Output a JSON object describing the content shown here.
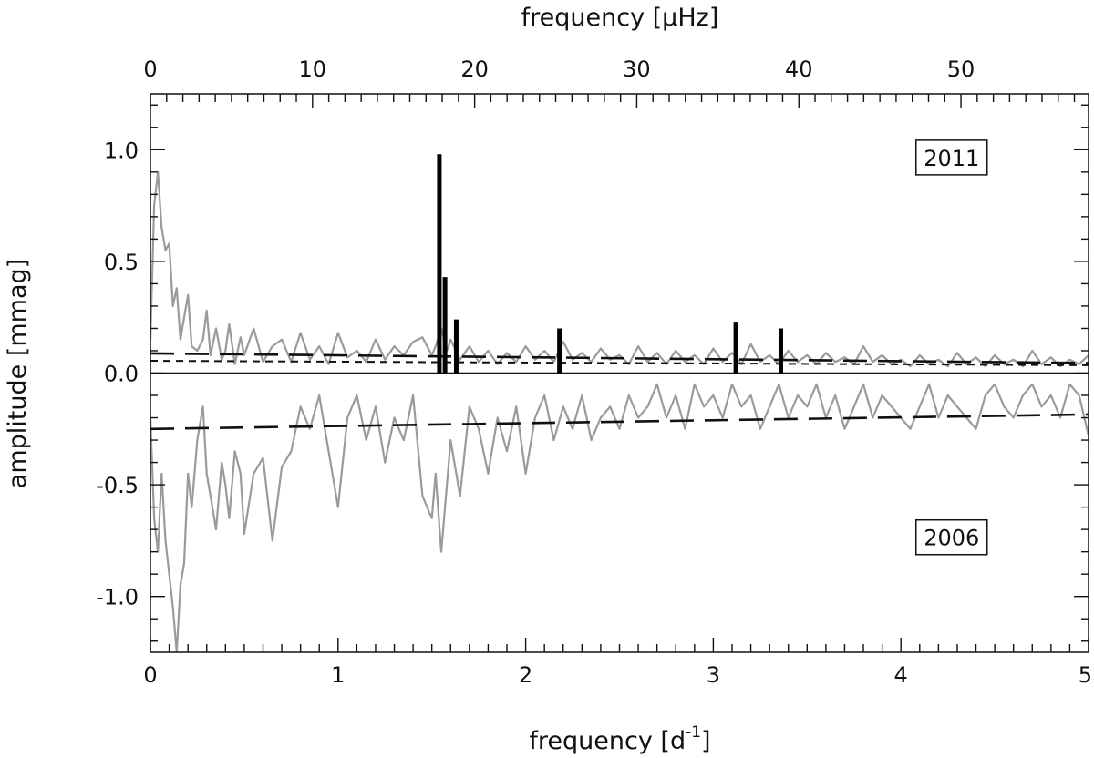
{
  "chart_data": {
    "type": "line",
    "title": "",
    "xlabel": "frequency [d",
    "xlabel_sup": "-1",
    "xlabel_end": "]",
    "x2label": "frequency [μHz]",
    "ylabel": "amplitude [mmag]",
    "xlim": [
      0,
      5
    ],
    "ylim": [
      -1.25,
      1.25
    ],
    "x2lim": [
      0,
      57.87
    ],
    "x_ticks": [
      0,
      1,
      2,
      3,
      4,
      5
    ],
    "x_tick_labels": [
      "0",
      "1",
      "2",
      "3",
      "4",
      "5"
    ],
    "x2_ticks": [
      0,
      10,
      20,
      30,
      40,
      50
    ],
    "x2_tick_labels": [
      "0",
      "10",
      "20",
      "30",
      "40",
      "50"
    ],
    "y_ticks": [
      -1.0,
      -0.5,
      0.0,
      0.5,
      1.0
    ],
    "y_tick_labels": [
      "-1.0",
      "-0.5",
      "0.0",
      "0.5",
      "1.0"
    ],
    "annotations": [
      {
        "text": "2011",
        "x": 4.27,
        "y": 0.965
      },
      {
        "text": "2006",
        "x": 4.27,
        "y": -0.735
      }
    ],
    "series": [
      {
        "style": "gray-solid",
        "x": [
          0.0,
          0.02,
          0.04,
          0.06,
          0.08,
          0.1,
          0.12,
          0.14,
          0.16,
          0.18,
          0.2,
          0.22,
          0.25,
          0.28,
          0.3,
          0.32,
          0.35,
          0.38,
          0.4,
          0.42,
          0.45,
          0.48,
          0.5,
          0.55,
          0.6,
          0.65,
          0.7,
          0.75,
          0.8,
          0.85,
          0.9,
          0.95,
          1.0,
          1.05,
          1.1,
          1.15,
          1.2,
          1.25,
          1.3,
          1.35,
          1.4,
          1.45,
          1.5,
          1.52,
          1.55,
          1.58,
          1.6,
          1.65,
          1.7,
          1.75,
          1.8,
          1.85,
          1.9,
          1.95,
          2.0,
          2.05,
          2.1,
          2.15,
          2.2,
          2.25,
          2.3,
          2.35,
          2.4,
          2.45,
          2.5,
          2.55,
          2.6,
          2.65,
          2.7,
          2.75,
          2.8,
          2.85,
          2.9,
          2.95,
          3.0,
          3.05,
          3.1,
          3.15,
          3.2,
          3.25,
          3.3,
          3.35,
          3.4,
          3.45,
          3.5,
          3.55,
          3.6,
          3.65,
          3.7,
          3.75,
          3.8,
          3.85,
          3.9,
          3.95,
          4.0,
          4.05,
          4.1,
          4.15,
          4.2,
          4.25,
          4.3,
          4.35,
          4.4,
          4.45,
          4.5,
          4.55,
          4.6,
          4.65,
          4.7,
          4.75,
          4.8,
          4.85,
          4.9,
          4.95,
          5.0
        ],
        "y": [
          0.15,
          0.75,
          0.9,
          0.65,
          0.55,
          0.58,
          0.3,
          0.38,
          0.15,
          0.25,
          0.35,
          0.12,
          0.1,
          0.15,
          0.28,
          0.08,
          0.2,
          0.06,
          0.1,
          0.22,
          0.04,
          0.16,
          0.08,
          0.2,
          0.05,
          0.12,
          0.15,
          0.05,
          0.18,
          0.06,
          0.12,
          0.04,
          0.18,
          0.07,
          0.1,
          0.05,
          0.15,
          0.06,
          0.12,
          0.08,
          0.14,
          0.16,
          0.08,
          0.12,
          0.2,
          0.1,
          0.15,
          0.06,
          0.12,
          0.05,
          0.1,
          0.04,
          0.09,
          0.05,
          0.12,
          0.06,
          0.1,
          0.05,
          0.14,
          0.06,
          0.09,
          0.05,
          0.11,
          0.06,
          0.08,
          0.04,
          0.12,
          0.05,
          0.09,
          0.04,
          0.1,
          0.05,
          0.08,
          0.04,
          0.11,
          0.05,
          0.09,
          0.04,
          0.13,
          0.05,
          0.08,
          0.04,
          0.1,
          0.05,
          0.08,
          0.04,
          0.09,
          0.05,
          0.07,
          0.04,
          0.12,
          0.05,
          0.08,
          0.04,
          0.06,
          0.03,
          0.08,
          0.04,
          0.06,
          0.03,
          0.09,
          0.04,
          0.07,
          0.03,
          0.08,
          0.04,
          0.06,
          0.03,
          0.1,
          0.04,
          0.07,
          0.03,
          0.06,
          0.04,
          0.08
        ]
      },
      {
        "style": "gray-solid",
        "x": [
          0.0,
          0.02,
          0.04,
          0.06,
          0.08,
          0.1,
          0.12,
          0.14,
          0.16,
          0.18,
          0.2,
          0.22,
          0.25,
          0.28,
          0.3,
          0.32,
          0.35,
          0.38,
          0.4,
          0.42,
          0.45,
          0.48,
          0.5,
          0.55,
          0.6,
          0.65,
          0.7,
          0.75,
          0.8,
          0.85,
          0.9,
          0.95,
          1.0,
          1.05,
          1.1,
          1.15,
          1.2,
          1.25,
          1.3,
          1.35,
          1.4,
          1.45,
          1.5,
          1.52,
          1.55,
          1.58,
          1.6,
          1.65,
          1.7,
          1.75,
          1.8,
          1.85,
          1.9,
          1.95,
          2.0,
          2.05,
          2.1,
          2.15,
          2.2,
          2.25,
          2.3,
          2.35,
          2.4,
          2.45,
          2.5,
          2.55,
          2.6,
          2.65,
          2.7,
          2.75,
          2.8,
          2.85,
          2.9,
          2.95,
          3.0,
          3.05,
          3.1,
          3.15,
          3.2,
          3.25,
          3.3,
          3.35,
          3.4,
          3.45,
          3.5,
          3.55,
          3.6,
          3.65,
          3.7,
          3.75,
          3.8,
          3.85,
          3.9,
          3.95,
          4.0,
          4.05,
          4.1,
          4.15,
          4.2,
          4.25,
          4.3,
          4.35,
          4.4,
          4.45,
          4.5,
          4.55,
          4.6,
          4.65,
          4.7,
          4.75,
          4.8,
          4.85,
          4.9,
          4.95,
          5.0
        ],
        "y": [
          -0.2,
          -0.65,
          -0.8,
          -0.45,
          -0.75,
          -0.9,
          -1.05,
          -1.25,
          -0.95,
          -0.85,
          -0.45,
          -0.6,
          -0.3,
          -0.15,
          -0.45,
          -0.55,
          -0.7,
          -0.4,
          -0.5,
          -0.65,
          -0.35,
          -0.45,
          -0.72,
          -0.45,
          -0.38,
          -0.75,
          -0.42,
          -0.35,
          -0.15,
          -0.25,
          -0.1,
          -0.35,
          -0.6,
          -0.2,
          -0.1,
          -0.3,
          -0.15,
          -0.4,
          -0.2,
          -0.3,
          -0.1,
          -0.55,
          -0.65,
          -0.45,
          -0.8,
          -0.5,
          -0.3,
          -0.55,
          -0.15,
          -0.25,
          -0.45,
          -0.2,
          -0.35,
          -0.15,
          -0.45,
          -0.2,
          -0.1,
          -0.3,
          -0.15,
          -0.25,
          -0.1,
          -0.3,
          -0.2,
          -0.15,
          -0.25,
          -0.1,
          -0.2,
          -0.15,
          -0.05,
          -0.2,
          -0.1,
          -0.25,
          -0.05,
          -0.15,
          -0.1,
          -0.2,
          -0.05,
          -0.15,
          -0.1,
          -0.25,
          -0.15,
          -0.05,
          -0.2,
          -0.1,
          -0.15,
          -0.05,
          -0.2,
          -0.1,
          -0.25,
          -0.15,
          -0.05,
          -0.2,
          -0.1,
          -0.15,
          -0.2,
          -0.25,
          -0.15,
          -0.05,
          -0.2,
          -0.1,
          -0.15,
          -0.2,
          -0.25,
          -0.1,
          -0.05,
          -0.15,
          -0.2,
          -0.1,
          -0.05,
          -0.15,
          -0.1,
          -0.2,
          -0.05,
          -0.1,
          -0.28
        ]
      },
      {
        "style": "black-long-dash",
        "x": [
          0.0,
          5.0
        ],
        "y": [
          0.088,
          0.045
        ]
      },
      {
        "style": "black-short-dash",
        "x": [
          0.0,
          5.0
        ],
        "y": [
          0.055,
          0.035
        ]
      },
      {
        "style": "black-long-dash",
        "x": [
          0.0,
          5.0
        ],
        "y": [
          -0.25,
          -0.185
        ]
      },
      {
        "style": "black-solid-zero",
        "x": [
          0.0,
          5.0
        ],
        "y": [
          0.0,
          0.0
        ]
      }
    ],
    "peaks": {
      "x": [
        1.54,
        1.57,
        1.63,
        2.18,
        3.12,
        3.36
      ],
      "y": [
        0.98,
        0.43,
        0.24,
        0.2,
        0.23,
        0.2
      ]
    }
  }
}
